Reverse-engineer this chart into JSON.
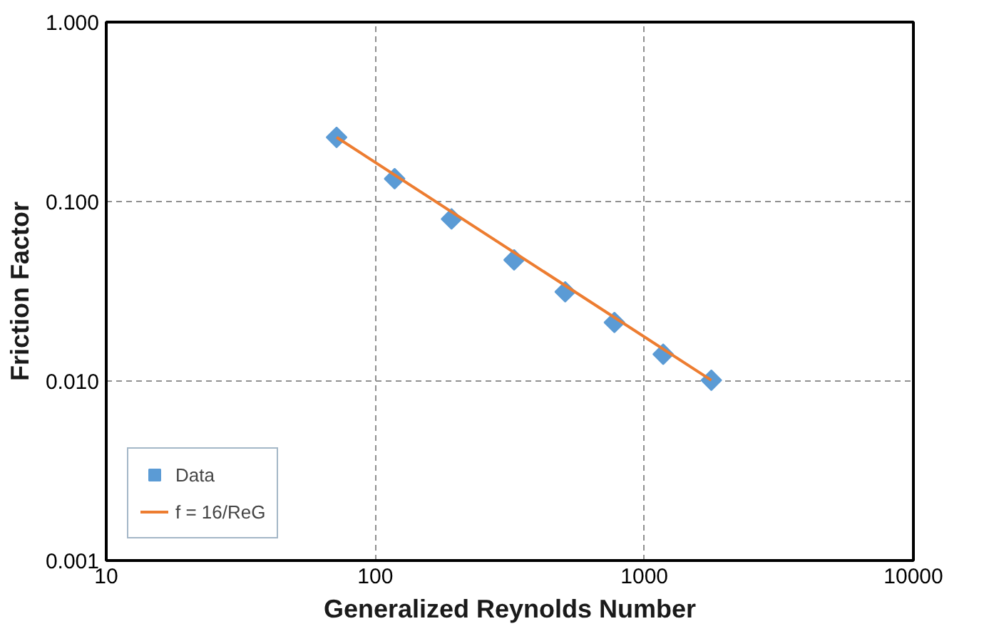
{
  "chart_data": {
    "type": "scatter",
    "xlabel": "Generalized Reynolds Number",
    "ylabel": "Friction Factor",
    "log": "xy",
    "xlim": [
      10,
      10000
    ],
    "ylim": [
      0.001,
      1
    ],
    "xticks": [
      10,
      100,
      1000,
      10000
    ],
    "yticks": [
      {
        "value": 0.001,
        "label": "0.001"
      },
      {
        "value": 0.01,
        "label": "0.010"
      },
      {
        "value": 0.1,
        "label": "0.100"
      },
      {
        "value": 1,
        "label": "1.000"
      }
    ],
    "grid": true,
    "legend": "bottom left",
    "series": [
      {
        "name": "Data",
        "marker": "diamond",
        "color": "#5b9bd5",
        "x": [
          71.8,
          118,
          192,
          328,
          508,
          774,
          1175,
          1774
        ],
        "values": [
          0.228,
          0.134,
          0.08,
          0.0473,
          0.0314,
          0.0212,
          0.0141,
          0.0101
        ]
      },
      {
        "name": "f = 16/ReG",
        "type": "line",
        "marker": "none",
        "color": "#ed7d31",
        "x": [
          71.8,
          1774
        ],
        "values": [
          0.228,
          0.0101
        ]
      }
    ]
  }
}
